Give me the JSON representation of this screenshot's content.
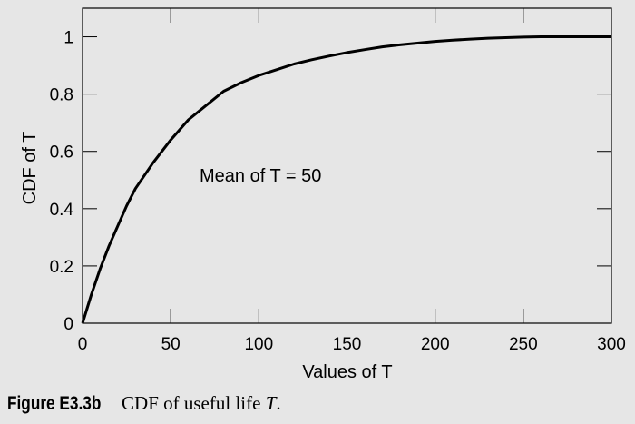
{
  "chart_data": {
    "type": "line",
    "xlabel": "Values of T",
    "ylabel": "CDF of T",
    "xlim": [
      0,
      300
    ],
    "ylim": [
      0,
      1.1
    ],
    "xticks": [
      "0",
      "50",
      "100",
      "150",
      "200",
      "250",
      "300"
    ],
    "yticks": [
      "0",
      "0.2",
      "0.4",
      "0.6",
      "0.8",
      "1"
    ],
    "annotation": "Mean of T = 50",
    "grid": false,
    "series": [
      {
        "x": [
          0,
          5,
          10,
          15,
          20,
          25,
          30,
          40,
          50,
          60,
          70,
          80,
          90,
          100,
          110,
          120,
          130,
          140,
          150,
          160,
          170,
          180,
          190,
          200,
          210,
          220,
          230,
          240,
          250,
          260,
          270,
          280,
          290,
          300
        ],
        "y": [
          0,
          0.1,
          0.19,
          0.27,
          0.34,
          0.41,
          0.47,
          0.56,
          0.64,
          0.71,
          0.76,
          0.81,
          0.84,
          0.865,
          0.885,
          0.905,
          0.92,
          0.933,
          0.945,
          0.955,
          0.965,
          0.972,
          0.978,
          0.984,
          0.988,
          0.992,
          0.995,
          0.997,
          0.999,
          1.0,
          1.0,
          1.0,
          1.0,
          1.0
        ]
      }
    ]
  },
  "caption": {
    "label": "Figure E3.3b",
    "text_before": "CDF of useful life ",
    "variable": "T",
    "text_after": "."
  }
}
